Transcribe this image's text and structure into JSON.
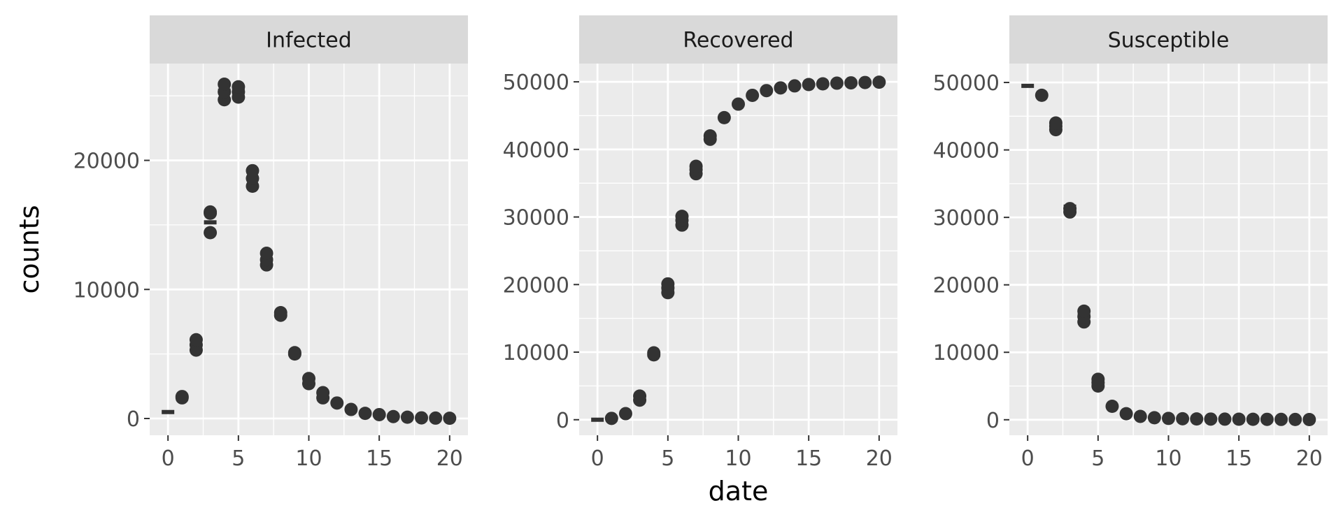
{
  "chart_data": {
    "type": "scatter",
    "layout": "faceted",
    "xlabel": "date",
    "ylabel": "counts",
    "colors": {
      "panel": "#EBEBEB",
      "strip": "#D9D9D9",
      "grid": "#FFFFFF",
      "point": "#333333"
    },
    "grid": true,
    "panels": [
      {
        "title": "Infected",
        "xlim": [
          -1.3,
          21.3
        ],
        "ylim": [
          -1300,
          27500
        ],
        "xticks": [
          "0",
          "5",
          "10",
          "15",
          "20"
        ],
        "xtick_values": [
          0,
          5,
          10,
          15,
          20
        ],
        "yticks": [
          "0",
          "10000",
          "20000"
        ],
        "ytick_values": [
          0,
          10000,
          20000
        ],
        "observed": [
          [
            1,
            1600
          ],
          [
            1,
            1700
          ],
          [
            2,
            5300
          ],
          [
            2,
            5700
          ],
          [
            2,
            6100
          ],
          [
            3,
            14400
          ],
          [
            3,
            15900
          ],
          [
            3,
            16000
          ],
          [
            4,
            24700
          ],
          [
            4,
            25300
          ],
          [
            4,
            25900
          ],
          [
            5,
            24900
          ],
          [
            5,
            25300
          ],
          [
            5,
            25700
          ],
          [
            6,
            18000
          ],
          [
            6,
            18600
          ],
          [
            6,
            19200
          ],
          [
            7,
            11900
          ],
          [
            7,
            12300
          ],
          [
            7,
            12800
          ],
          [
            8,
            8000
          ],
          [
            8,
            8200
          ],
          [
            9,
            5000
          ],
          [
            9,
            5100
          ],
          [
            10,
            2700
          ],
          [
            10,
            3100
          ],
          [
            11,
            1600
          ],
          [
            11,
            2000
          ],
          [
            12,
            1200
          ],
          [
            13,
            700
          ],
          [
            14,
            400
          ],
          [
            15,
            300
          ],
          [
            16,
            150
          ],
          [
            17,
            100
          ],
          [
            18,
            50
          ],
          [
            19,
            30
          ],
          [
            20,
            20
          ]
        ],
        "model": [
          [
            0,
            500
          ],
          [
            3,
            15200
          ],
          [
            4,
            25400
          ],
          [
            5,
            25400
          ],
          [
            7,
            12300
          ],
          [
            8,
            8000
          ],
          [
            9,
            5000
          ],
          [
            10,
            3000
          ]
        ]
      },
      {
        "title": "Recovered",
        "xlim": [
          -1.3,
          21.3
        ],
        "ylim": [
          -2300,
          52700
        ],
        "xticks": [
          "0",
          "5",
          "10",
          "15",
          "20"
        ],
        "xtick_values": [
          0,
          5,
          10,
          15,
          20
        ],
        "yticks": [
          "0",
          "10000",
          "20000",
          "30000",
          "40000",
          "50000"
        ],
        "ytick_values": [
          0,
          10000,
          20000,
          30000,
          40000,
          50000
        ],
        "observed": [
          [
            1,
            200
          ],
          [
            2,
            900
          ],
          [
            3,
            2900
          ],
          [
            3,
            3500
          ],
          [
            4,
            9600
          ],
          [
            4,
            9900
          ],
          [
            5,
            18800
          ],
          [
            5,
            19500
          ],
          [
            5,
            20100
          ],
          [
            6,
            28800
          ],
          [
            6,
            29500
          ],
          [
            6,
            30100
          ],
          [
            7,
            36400
          ],
          [
            7,
            37000
          ],
          [
            7,
            37500
          ],
          [
            8,
            41500
          ],
          [
            8,
            42000
          ],
          [
            9,
            44700
          ],
          [
            10,
            46700
          ],
          [
            11,
            48000
          ],
          [
            12,
            48700
          ],
          [
            13,
            49100
          ],
          [
            14,
            49400
          ],
          [
            15,
            49600
          ],
          [
            16,
            49700
          ],
          [
            17,
            49800
          ],
          [
            18,
            49850
          ],
          [
            19,
            49900
          ],
          [
            20,
            49950
          ]
        ],
        "model": [
          [
            0,
            0
          ],
          [
            4,
            9600
          ],
          [
            5,
            19400
          ]
        ]
      },
      {
        "title": "Susceptible",
        "xlim": [
          -1.3,
          21.3
        ],
        "ylim": [
          -2300,
          52800
        ],
        "xticks": [
          "0",
          "5",
          "10",
          "15",
          "20"
        ],
        "xtick_values": [
          0,
          5,
          10,
          15,
          20
        ],
        "yticks": [
          "0",
          "10000",
          "20000",
          "30000",
          "40000",
          "50000"
        ],
        "ytick_values": [
          0,
          10000,
          20000,
          30000,
          40000,
          50000
        ],
        "observed": [
          [
            1,
            48100
          ],
          [
            2,
            43000
          ],
          [
            2,
            43500
          ],
          [
            2,
            44000
          ],
          [
            3,
            30800
          ],
          [
            3,
            31300
          ],
          [
            4,
            14500
          ],
          [
            4,
            15300
          ],
          [
            4,
            16100
          ],
          [
            5,
            5000
          ],
          [
            5,
            5500
          ],
          [
            5,
            6000
          ],
          [
            6,
            2000
          ],
          [
            7,
            900
          ],
          [
            8,
            500
          ],
          [
            9,
            300
          ],
          [
            10,
            200
          ],
          [
            11,
            150
          ],
          [
            12,
            120
          ],
          [
            13,
            100
          ],
          [
            14,
            90
          ],
          [
            15,
            80
          ],
          [
            16,
            70
          ],
          [
            17,
            60
          ],
          [
            18,
            50
          ],
          [
            19,
            40
          ],
          [
            20,
            30
          ]
        ],
        "model": [
          [
            0,
            49500
          ],
          [
            3,
            31600
          ],
          [
            4,
            15500
          ],
          [
            5,
            5500
          ]
        ]
      }
    ]
  }
}
